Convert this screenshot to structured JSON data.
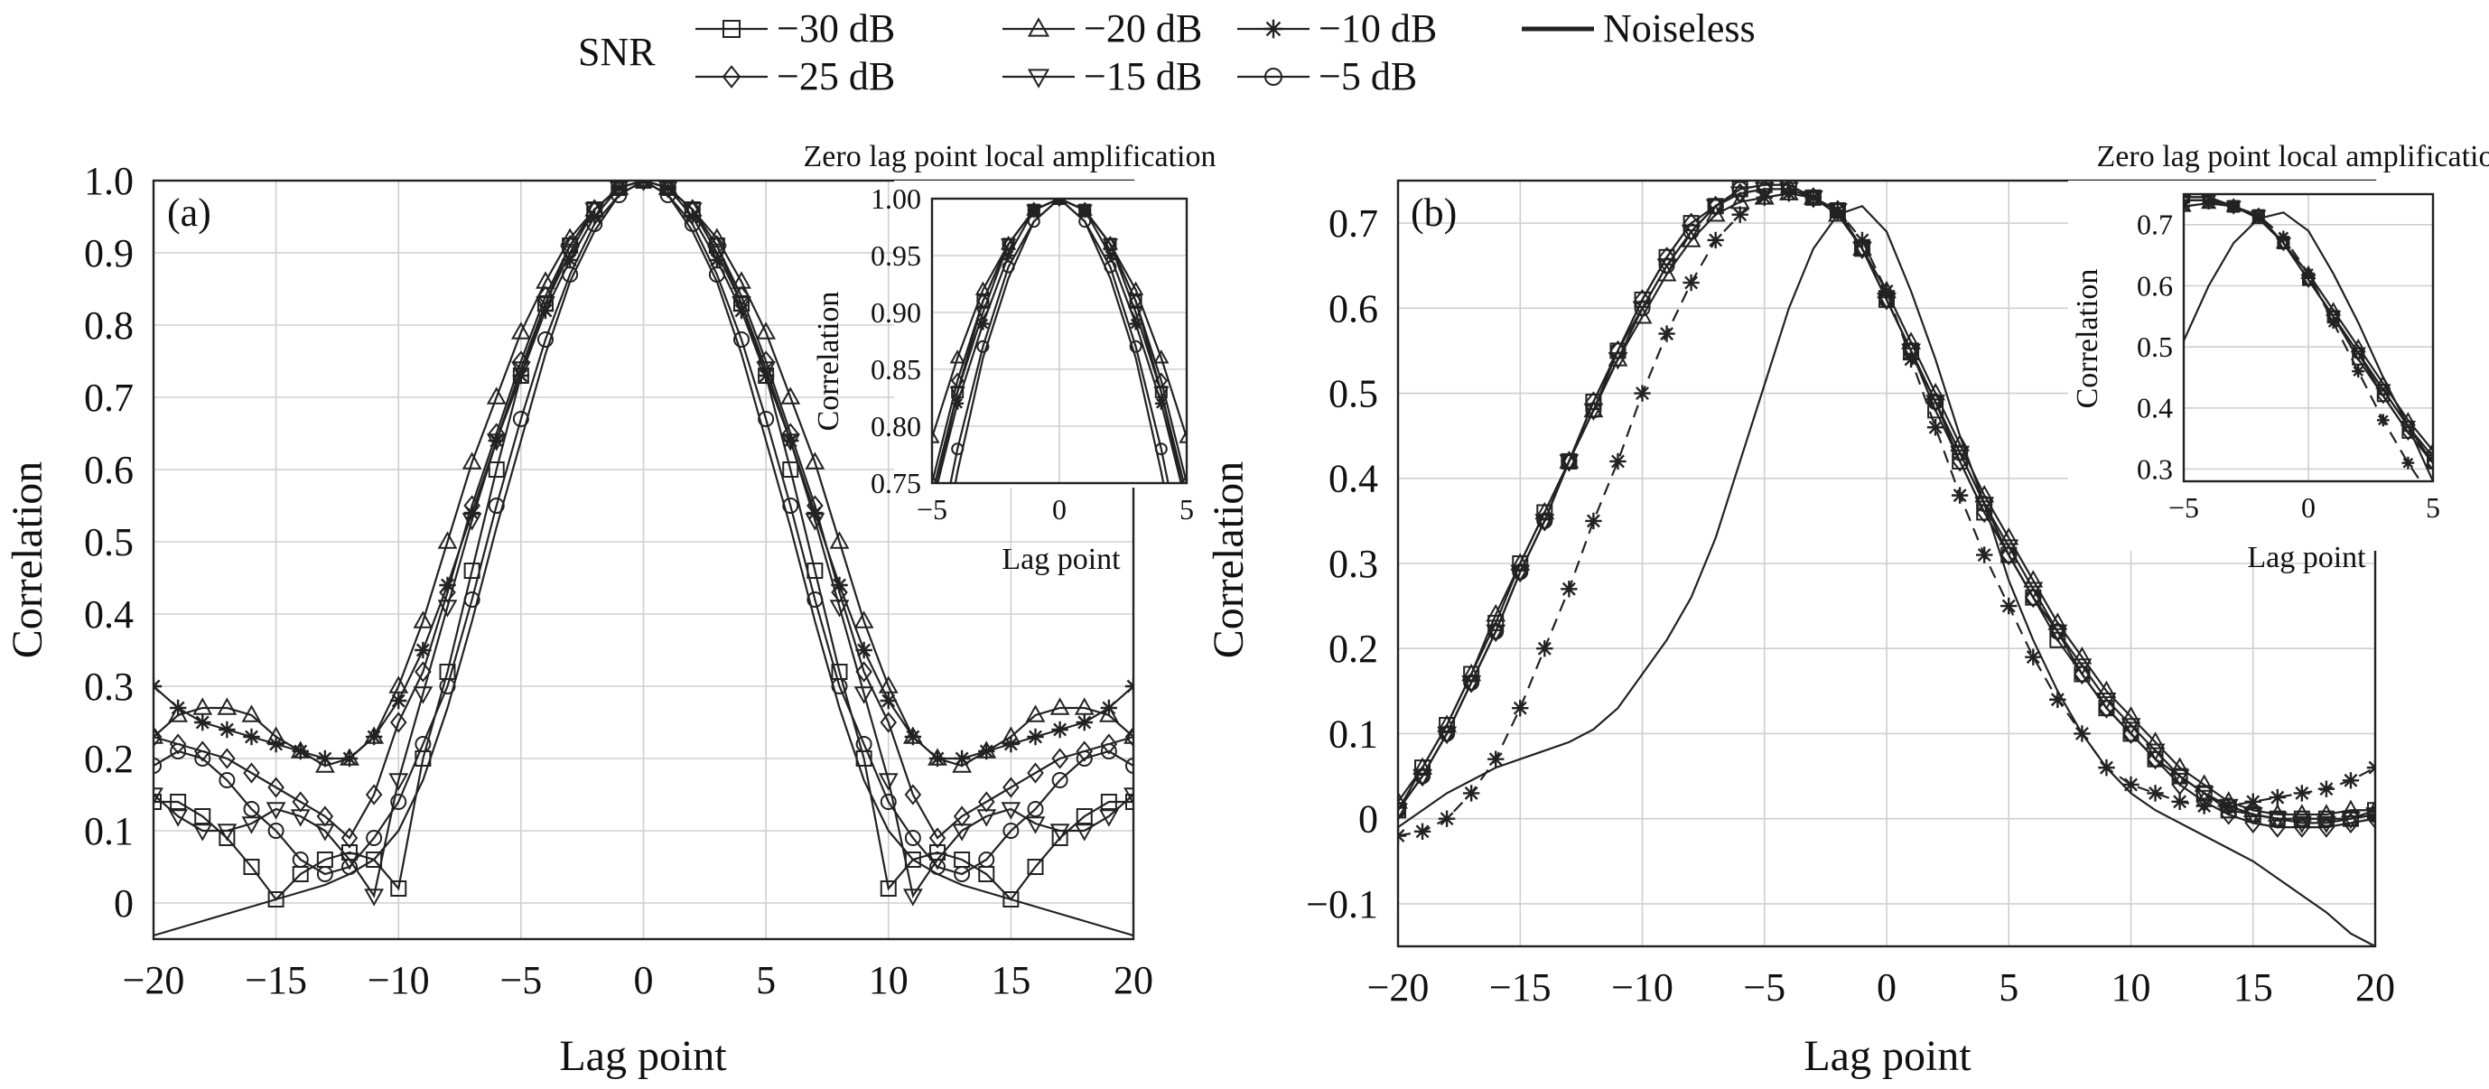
{
  "legend": {
    "title": "SNR",
    "entries": [
      {
        "label": "−30 dB",
        "marker": "square"
      },
      {
        "label": "−20 dB",
        "marker": "triangle"
      },
      {
        "label": "−10 dB",
        "marker": "star"
      },
      {
        "label": "Noiseless",
        "marker": "none"
      },
      {
        "label": "−25 dB",
        "marker": "diamond"
      },
      {
        "label": "−15 dB",
        "marker": "triangle-down"
      },
      {
        "label": "−5 dB",
        "marker": "circle"
      }
    ]
  },
  "chart_data": [
    {
      "type": "line",
      "panel_label": "(a)",
      "xlabel": "Lag point",
      "ylabel": "Correlation",
      "xlim": [
        -20,
        20
      ],
      "ylim": [
        -0.05,
        1.0
      ],
      "xticks": [
        -20,
        -15,
        -10,
        -5,
        0,
        5,
        10,
        15,
        20
      ],
      "yticks": [
        0,
        0.1,
        0.2,
        0.3,
        0.4,
        0.5,
        0.6,
        0.7,
        0.8,
        0.9,
        1.0
      ],
      "ytick_labels": [
        "0",
        "0.1",
        "0.2",
        "0.3",
        "0.4",
        "0.5",
        "0.6",
        "0.7",
        "0.8",
        "0.9",
        "1.0"
      ],
      "grid": true,
      "x": [
        -20,
        -19,
        -18,
        -17,
        -16,
        -15,
        -14,
        -13,
        -12,
        -11,
        -10,
        -9,
        -8,
        -7,
        -6,
        -5,
        -4,
        -3,
        -2,
        -1,
        0,
        1,
        2,
        3,
        4,
        5,
        6,
        7,
        8,
        9,
        10,
        11,
        12,
        13,
        14,
        15,
        16,
        17,
        18,
        19,
        20
      ],
      "series": [
        {
          "name": "−30 dB",
          "marker": "square",
          "values": [
            0.14,
            0.14,
            0.12,
            0.09,
            0.05,
            0.005,
            0.04,
            0.06,
            0.07,
            0.06,
            0.02,
            0.2,
            0.32,
            0.46,
            0.6,
            0.73,
            0.83,
            0.91,
            0.96,
            0.99,
            1.0,
            0.99,
            0.96,
            0.91,
            0.83,
            0.73,
            0.6,
            0.46,
            0.32,
            0.2,
            0.02,
            0.06,
            0.07,
            0.06,
            0.04,
            0.005,
            0.05,
            0.09,
            0.12,
            0.14,
            0.14
          ]
        },
        {
          "name": "−25 dB",
          "marker": "diamond",
          "values": [
            0.23,
            0.22,
            0.21,
            0.2,
            0.18,
            0.16,
            0.14,
            0.12,
            0.09,
            0.15,
            0.25,
            0.32,
            0.43,
            0.55,
            0.65,
            0.75,
            0.84,
            0.91,
            0.96,
            0.99,
            1.0,
            0.99,
            0.96,
            0.91,
            0.84,
            0.75,
            0.65,
            0.55,
            0.43,
            0.32,
            0.25,
            0.15,
            0.09,
            0.12,
            0.14,
            0.16,
            0.18,
            0.2,
            0.21,
            0.22,
            0.23
          ]
        },
        {
          "name": "−20 dB",
          "marker": "triangle",
          "values": [
            0.23,
            0.26,
            0.27,
            0.27,
            0.26,
            0.23,
            0.21,
            0.19,
            0.2,
            0.23,
            0.3,
            0.39,
            0.5,
            0.61,
            0.7,
            0.79,
            0.86,
            0.92,
            0.96,
            0.99,
            1.0,
            0.99,
            0.96,
            0.92,
            0.86,
            0.79,
            0.7,
            0.61,
            0.5,
            0.39,
            0.3,
            0.23,
            0.2,
            0.19,
            0.21,
            0.23,
            0.26,
            0.27,
            0.27,
            0.26,
            0.23
          ]
        },
        {
          "name": "−15 dB",
          "marker": "triangle-down",
          "values": [
            0.15,
            0.12,
            0.1,
            0.1,
            0.11,
            0.13,
            0.12,
            0.1,
            0.06,
            0.01,
            0.17,
            0.29,
            0.41,
            0.53,
            0.64,
            0.74,
            0.83,
            0.9,
            0.96,
            0.99,
            1.0,
            0.99,
            0.96,
            0.9,
            0.83,
            0.74,
            0.64,
            0.53,
            0.41,
            0.29,
            0.17,
            0.01,
            0.06,
            0.1,
            0.12,
            0.13,
            0.11,
            0.1,
            0.1,
            0.12,
            0.15
          ]
        },
        {
          "name": "−10 dB",
          "marker": "star",
          "values": [
            0.3,
            0.27,
            0.25,
            0.24,
            0.23,
            0.22,
            0.21,
            0.2,
            0.2,
            0.23,
            0.28,
            0.35,
            0.44,
            0.54,
            0.64,
            0.73,
            0.82,
            0.89,
            0.95,
            0.99,
            1.0,
            0.99,
            0.95,
            0.89,
            0.82,
            0.73,
            0.64,
            0.54,
            0.44,
            0.35,
            0.28,
            0.23,
            0.2,
            0.2,
            0.21,
            0.22,
            0.23,
            0.24,
            0.25,
            0.27,
            0.3
          ]
        },
        {
          "name": "−5 dB",
          "marker": "circle",
          "values": [
            0.19,
            0.21,
            0.2,
            0.17,
            0.13,
            0.1,
            0.06,
            0.04,
            0.05,
            0.09,
            0.14,
            0.22,
            0.3,
            0.42,
            0.55,
            0.67,
            0.78,
            0.87,
            0.94,
            0.98,
            1.0,
            0.98,
            0.94,
            0.87,
            0.78,
            0.67,
            0.55,
            0.42,
            0.3,
            0.22,
            0.14,
            0.09,
            0.05,
            0.04,
            0.06,
            0.1,
            0.13,
            0.17,
            0.2,
            0.21,
            0.19
          ]
        },
        {
          "name": "Noiseless",
          "marker": "none",
          "values": [
            -0.045,
            -0.035,
            -0.025,
            -0.015,
            -0.005,
            0.005,
            0.015,
            0.025,
            0.04,
            0.06,
            0.1,
            0.17,
            0.27,
            0.39,
            0.52,
            0.64,
            0.76,
            0.86,
            0.93,
            0.98,
            1.0,
            0.98,
            0.93,
            0.86,
            0.76,
            0.64,
            0.52,
            0.39,
            0.27,
            0.17,
            0.1,
            0.06,
            0.04,
            0.025,
            0.015,
            0.005,
            -0.005,
            -0.015,
            -0.025,
            -0.035,
            -0.045
          ]
        }
      ],
      "inset": {
        "title": "Zero lag point local amplification",
        "xlabel": "Lag point",
        "ylabel": "Correlation",
        "xlim": [
          -5,
          5
        ],
        "ylim": [
          0.75,
          1.0
        ],
        "xticks": [
          -5,
          0,
          5
        ],
        "yticks": [
          0.75,
          0.8,
          0.85,
          0.9,
          0.95,
          1.0
        ],
        "ytick_labels": [
          "0.75",
          "0.80",
          "0.85",
          "0.90",
          "0.95",
          "1.00"
        ]
      }
    },
    {
      "type": "line",
      "panel_label": "(b)",
      "xlabel": "Lag point",
      "ylabel": "Correlation",
      "xlim": [
        -20,
        20
      ],
      "ylim": [
        -0.15,
        0.75
      ],
      "xticks": [
        -20,
        -15,
        -10,
        -5,
        0,
        5,
        10,
        15,
        20
      ],
      "yticks": [
        -0.1,
        0,
        0.1,
        0.2,
        0.3,
        0.4,
        0.5,
        0.6,
        0.7
      ],
      "ytick_labels": [
        "−0.1",
        "0",
        "0.1",
        "0.2",
        "0.3",
        "0.4",
        "0.5",
        "0.6",
        "0.7"
      ],
      "grid": true,
      "x": [
        -20,
        -19,
        -18,
        -17,
        -16,
        -15,
        -14,
        -13,
        -12,
        -11,
        -10,
        -9,
        -8,
        -7,
        -6,
        -5,
        -4,
        -3,
        -2,
        -1,
        0,
        1,
        2,
        3,
        4,
        5,
        6,
        7,
        8,
        9,
        10,
        11,
        12,
        13,
        14,
        15,
        16,
        17,
        18,
        19,
        20
      ],
      "series": [
        {
          "name": "−30 dB",
          "marker": "square",
          "values": [
            0.01,
            0.06,
            0.11,
            0.17,
            0.23,
            0.3,
            0.36,
            0.42,
            0.49,
            0.55,
            0.61,
            0.66,
            0.7,
            0.72,
            0.74,
            0.745,
            0.745,
            0.73,
            0.715,
            0.67,
            0.61,
            0.55,
            0.48,
            0.42,
            0.36,
            0.31,
            0.26,
            0.21,
            0.17,
            0.13,
            0.1,
            0.07,
            0.05,
            0.03,
            0.01,
            0.005,
            0.0,
            0.0,
            0.0,
            0.0,
            0.01
          ]
        },
        {
          "name": "−25 dB",
          "marker": "diamond",
          "values": [
            0.01,
            0.05,
            0.1,
            0.16,
            0.22,
            0.29,
            0.35,
            0.42,
            0.49,
            0.55,
            0.61,
            0.66,
            0.7,
            0.72,
            0.735,
            0.74,
            0.74,
            0.73,
            0.715,
            0.67,
            0.61,
            0.55,
            0.49,
            0.42,
            0.36,
            0.31,
            0.26,
            0.22,
            0.17,
            0.13,
            0.1,
            0.07,
            0.04,
            0.02,
            0.005,
            -0.005,
            -0.01,
            -0.01,
            -0.01,
            -0.005,
            0.0
          ]
        },
        {
          "name": "−20 dB",
          "marker": "triangle",
          "values": [
            0.02,
            0.06,
            0.11,
            0.17,
            0.24,
            0.3,
            0.36,
            0.42,
            0.48,
            0.54,
            0.59,
            0.64,
            0.68,
            0.71,
            0.725,
            0.73,
            0.735,
            0.73,
            0.71,
            0.67,
            0.62,
            0.56,
            0.5,
            0.44,
            0.38,
            0.33,
            0.28,
            0.23,
            0.19,
            0.15,
            0.12,
            0.09,
            0.06,
            0.04,
            0.02,
            0.01,
            0.005,
            0.005,
            0.005,
            0.01,
            0.01
          ]
        },
        {
          "name": "−15 dB",
          "marker": "triangle-down",
          "values": [
            0.01,
            0.05,
            0.1,
            0.16,
            0.22,
            0.29,
            0.35,
            0.42,
            0.48,
            0.54,
            0.6,
            0.65,
            0.69,
            0.72,
            0.735,
            0.74,
            0.74,
            0.73,
            0.715,
            0.67,
            0.61,
            0.55,
            0.49,
            0.43,
            0.37,
            0.32,
            0.27,
            0.22,
            0.18,
            0.14,
            0.11,
            0.08,
            0.05,
            0.03,
            0.015,
            0.005,
            0.0,
            -0.005,
            -0.005,
            0.0,
            0.005
          ]
        },
        {
          "name": "−10 dB",
          "marker": "star",
          "values": [
            -0.02,
            -0.015,
            0.0,
            0.03,
            0.07,
            0.13,
            0.2,
            0.27,
            0.35,
            0.42,
            0.5,
            0.57,
            0.63,
            0.68,
            0.71,
            0.73,
            0.735,
            0.73,
            0.715,
            0.68,
            0.62,
            0.54,
            0.46,
            0.38,
            0.31,
            0.25,
            0.19,
            0.14,
            0.1,
            0.06,
            0.04,
            0.03,
            0.02,
            0.015,
            0.015,
            0.02,
            0.025,
            0.03,
            0.035,
            0.045,
            0.06
          ]
        },
        {
          "name": "−5 dB",
          "marker": "circle",
          "values": [
            0.01,
            0.05,
            0.1,
            0.16,
            0.22,
            0.29,
            0.35,
            0.42,
            0.48,
            0.55,
            0.6,
            0.65,
            0.69,
            0.72,
            0.74,
            0.745,
            0.745,
            0.73,
            0.715,
            0.67,
            0.61,
            0.55,
            0.49,
            0.43,
            0.37,
            0.31,
            0.26,
            0.22,
            0.17,
            0.13,
            0.1,
            0.07,
            0.05,
            0.03,
            0.015,
            0.005,
            0.0,
            0.0,
            0.0,
            0.0,
            0.005
          ]
        },
        {
          "name": "Noiseless",
          "marker": "none",
          "values": [
            -0.01,
            0.01,
            0.03,
            0.045,
            0.06,
            0.07,
            0.08,
            0.09,
            0.105,
            0.13,
            0.17,
            0.21,
            0.26,
            0.33,
            0.42,
            0.51,
            0.6,
            0.67,
            0.71,
            0.72,
            0.69,
            0.62,
            0.54,
            0.45,
            0.37,
            0.28,
            0.21,
            0.15,
            0.1,
            0.06,
            0.03,
            0.01,
            -0.005,
            -0.02,
            -0.035,
            -0.05,
            -0.07,
            -0.09,
            -0.11,
            -0.135,
            -0.15
          ]
        }
      ],
      "inset": {
        "title": "Zero lag point local amplification",
        "xlabel": "Lag point",
        "ylabel": "Correlation",
        "xlim": [
          -5,
          5
        ],
        "ylim": [
          0.28,
          0.75
        ],
        "xticks": [
          -5,
          0,
          5
        ],
        "yticks": [
          0.3,
          0.4,
          0.5,
          0.6,
          0.7
        ],
        "ytick_labels": [
          "0.3",
          "0.4",
          "0.5",
          "0.6",
          "0.7"
        ]
      }
    }
  ]
}
